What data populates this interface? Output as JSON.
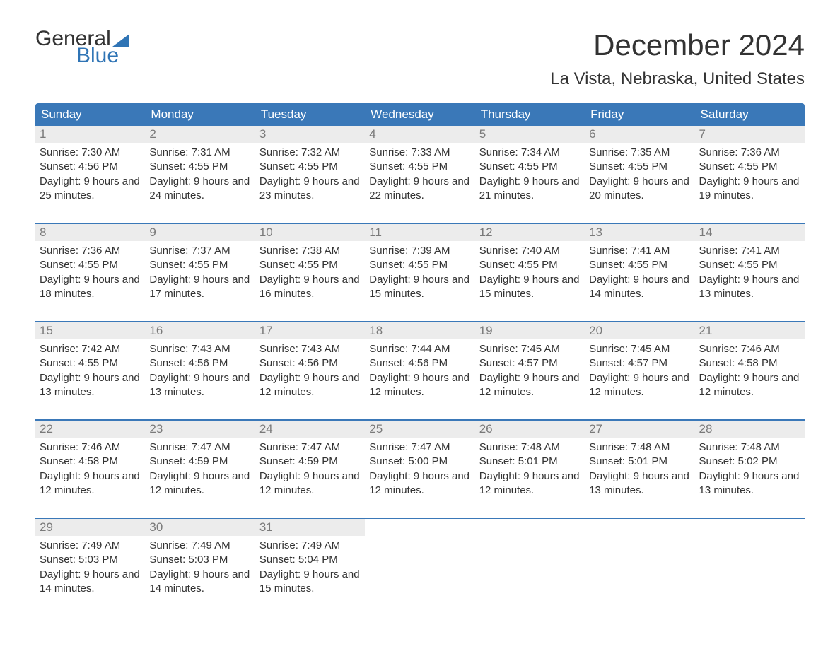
{
  "logo": {
    "word1": "General",
    "word2": "Blue",
    "flag_color": "#2f74b5"
  },
  "title": "December 2024",
  "location": "La Vista, Nebraska, United States",
  "colors": {
    "header_bg": "#3a78b8",
    "header_text": "#ffffff",
    "daynum_bg": "#ececec",
    "daynum_text": "#7a7a7a",
    "body_text": "#333333",
    "accent": "#2f74b5",
    "rule": "#3a78b8"
  },
  "day_headers": [
    "Sunday",
    "Monday",
    "Tuesday",
    "Wednesday",
    "Thursday",
    "Friday",
    "Saturday"
  ],
  "labels": {
    "sunrise": "Sunrise:",
    "sunset": "Sunset:",
    "daylight": "Daylight:"
  },
  "weeks": [
    [
      {
        "n": "1",
        "sr": "7:30 AM",
        "ss": "4:56 PM",
        "dl": "9 hours and 25 minutes."
      },
      {
        "n": "2",
        "sr": "7:31 AM",
        "ss": "4:55 PM",
        "dl": "9 hours and 24 minutes."
      },
      {
        "n": "3",
        "sr": "7:32 AM",
        "ss": "4:55 PM",
        "dl": "9 hours and 23 minutes."
      },
      {
        "n": "4",
        "sr": "7:33 AM",
        "ss": "4:55 PM",
        "dl": "9 hours and 22 minutes."
      },
      {
        "n": "5",
        "sr": "7:34 AM",
        "ss": "4:55 PM",
        "dl": "9 hours and 21 minutes."
      },
      {
        "n": "6",
        "sr": "7:35 AM",
        "ss": "4:55 PM",
        "dl": "9 hours and 20 minutes."
      },
      {
        "n": "7",
        "sr": "7:36 AM",
        "ss": "4:55 PM",
        "dl": "9 hours and 19 minutes."
      }
    ],
    [
      {
        "n": "8",
        "sr": "7:36 AM",
        "ss": "4:55 PM",
        "dl": "9 hours and 18 minutes."
      },
      {
        "n": "9",
        "sr": "7:37 AM",
        "ss": "4:55 PM",
        "dl": "9 hours and 17 minutes."
      },
      {
        "n": "10",
        "sr": "7:38 AM",
        "ss": "4:55 PM",
        "dl": "9 hours and 16 minutes."
      },
      {
        "n": "11",
        "sr": "7:39 AM",
        "ss": "4:55 PM",
        "dl": "9 hours and 15 minutes."
      },
      {
        "n": "12",
        "sr": "7:40 AM",
        "ss": "4:55 PM",
        "dl": "9 hours and 15 minutes."
      },
      {
        "n": "13",
        "sr": "7:41 AM",
        "ss": "4:55 PM",
        "dl": "9 hours and 14 minutes."
      },
      {
        "n": "14",
        "sr": "7:41 AM",
        "ss": "4:55 PM",
        "dl": "9 hours and 13 minutes."
      }
    ],
    [
      {
        "n": "15",
        "sr": "7:42 AM",
        "ss": "4:55 PM",
        "dl": "9 hours and 13 minutes."
      },
      {
        "n": "16",
        "sr": "7:43 AM",
        "ss": "4:56 PM",
        "dl": "9 hours and 13 minutes."
      },
      {
        "n": "17",
        "sr": "7:43 AM",
        "ss": "4:56 PM",
        "dl": "9 hours and 12 minutes."
      },
      {
        "n": "18",
        "sr": "7:44 AM",
        "ss": "4:56 PM",
        "dl": "9 hours and 12 minutes."
      },
      {
        "n": "19",
        "sr": "7:45 AM",
        "ss": "4:57 PM",
        "dl": "9 hours and 12 minutes."
      },
      {
        "n": "20",
        "sr": "7:45 AM",
        "ss": "4:57 PM",
        "dl": "9 hours and 12 minutes."
      },
      {
        "n": "21",
        "sr": "7:46 AM",
        "ss": "4:58 PM",
        "dl": "9 hours and 12 minutes."
      }
    ],
    [
      {
        "n": "22",
        "sr": "7:46 AM",
        "ss": "4:58 PM",
        "dl": "9 hours and 12 minutes."
      },
      {
        "n": "23",
        "sr": "7:47 AM",
        "ss": "4:59 PM",
        "dl": "9 hours and 12 minutes."
      },
      {
        "n": "24",
        "sr": "7:47 AM",
        "ss": "4:59 PM",
        "dl": "9 hours and 12 minutes."
      },
      {
        "n": "25",
        "sr": "7:47 AM",
        "ss": "5:00 PM",
        "dl": "9 hours and 12 minutes."
      },
      {
        "n": "26",
        "sr": "7:48 AM",
        "ss": "5:01 PM",
        "dl": "9 hours and 12 minutes."
      },
      {
        "n": "27",
        "sr": "7:48 AM",
        "ss": "5:01 PM",
        "dl": "9 hours and 13 minutes."
      },
      {
        "n": "28",
        "sr": "7:48 AM",
        "ss": "5:02 PM",
        "dl": "9 hours and 13 minutes."
      }
    ],
    [
      {
        "n": "29",
        "sr": "7:49 AM",
        "ss": "5:03 PM",
        "dl": "9 hours and 14 minutes."
      },
      {
        "n": "30",
        "sr": "7:49 AM",
        "ss": "5:03 PM",
        "dl": "9 hours and 14 minutes."
      },
      {
        "n": "31",
        "sr": "7:49 AM",
        "ss": "5:04 PM",
        "dl": "9 hours and 15 minutes."
      },
      null,
      null,
      null,
      null
    ]
  ]
}
